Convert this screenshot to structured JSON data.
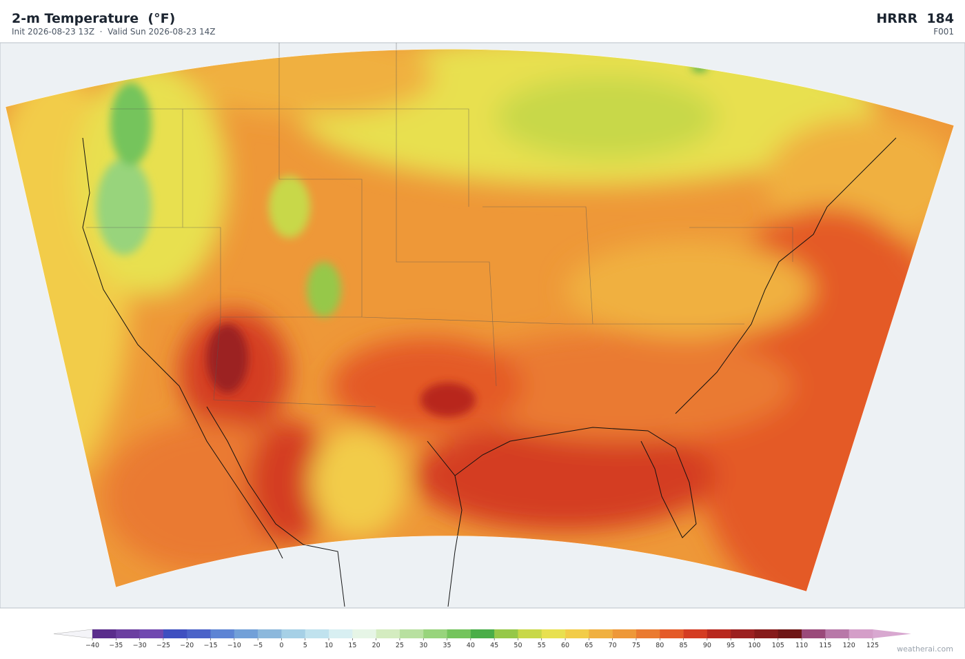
{
  "header": {
    "title": "2-m Temperature  (°F)",
    "subtitle": "Init 2026-08-23 13Z  ·  Valid Sun 2026-08-23 14Z",
    "model": "HRRR  184",
    "forecast_hour": "F001"
  },
  "colorbar": {
    "ticks": [
      {
        "value": -40,
        "label": "−40"
      },
      {
        "value": -35,
        "label": "−35"
      },
      {
        "value": -30,
        "label": "−30"
      },
      {
        "value": -25,
        "label": "−25"
      },
      {
        "value": -20,
        "label": "−20"
      },
      {
        "value": -15,
        "label": "−15"
      },
      {
        "value": -10,
        "label": "−10"
      },
      {
        "value": -5,
        "label": "−5"
      },
      0,
      5,
      10,
      15,
      20,
      25,
      30,
      35,
      40,
      45,
      50,
      55,
      60,
      65,
      70,
      75,
      80,
      85,
      90,
      95,
      100,
      105,
      110,
      115,
      120,
      125
    ],
    "colors": [
      "#5a2d8c",
      "#6b3fa0",
      "#7048b0",
      "#3f4fc0",
      "#4b63c8",
      "#5d84d4",
      "#72a0d8",
      "#8cb8dc",
      "#a6d0e6",
      "#c0e2ee",
      "#d8eff2",
      "#e6f5e6",
      "#d4ecc0",
      "#b8e0a0",
      "#98d47c",
      "#74c45c",
      "#4aae48",
      "#96c848",
      "#c8d848",
      "#e8e050",
      "#f2cc48",
      "#f0b040",
      "#ee9838",
      "#ea7a30",
      "#e45a28",
      "#d43c22",
      "#b8281e",
      "#9c2020",
      "#861a1a",
      "#6e1616",
      "#9a4a7a",
      "#b878a8",
      "#d49ec8"
    ],
    "under_color": "#f4f4f8",
    "over_color": "#d8a8d0"
  },
  "footer": {
    "credit": "weatherai.com"
  }
}
